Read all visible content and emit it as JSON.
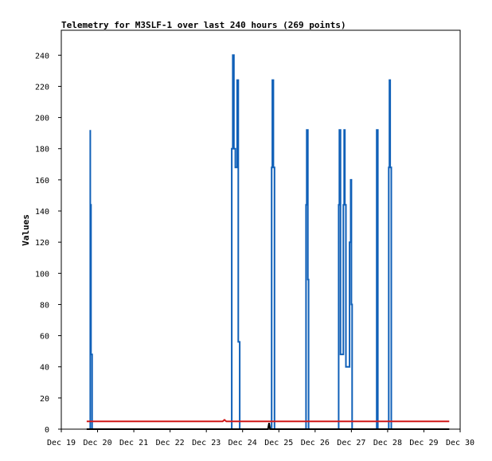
{
  "chart_data": {
    "type": "line",
    "title": "Telemetry for M3SLF-1 over last 240 hours (269 points)",
    "xlabel": "",
    "ylabel": "Values",
    "ylim": [
      0,
      256
    ],
    "xlim": [
      "Dec 19",
      "Dec 30"
    ],
    "x_tick_labels": [
      "Dec 19",
      "Dec 20",
      "Dec 21",
      "Dec 22",
      "Dec 23",
      "Dec 24",
      "Dec 25",
      "Dec 26",
      "Dec 27",
      "Dec 28",
      "Dec 29",
      "Dec 30"
    ],
    "y_ticks": [
      0,
      20,
      40,
      60,
      80,
      100,
      120,
      140,
      160,
      180,
      200,
      220,
      240
    ],
    "grid": false,
    "legend": "none",
    "series": [
      {
        "color": "#1060b8",
        "style": "spikes",
        "points": [
          [
            "Dec 19.80",
            192
          ],
          [
            "Dec 19.82",
            144
          ],
          [
            "Dec 19.85",
            48
          ],
          [
            "Dec 23.70",
            60
          ],
          [
            "Dec 23.73",
            180
          ],
          [
            "Dec 23.76",
            240
          ],
          [
            "Dec 23.80",
            180
          ],
          [
            "Dec 23.85",
            168
          ],
          [
            "Dec 23.88",
            224
          ],
          [
            "Dec 23.92",
            56
          ],
          [
            "Dec 24.80",
            56
          ],
          [
            "Dec 24.82",
            168
          ],
          [
            "Dec 24.85",
            224
          ],
          [
            "Dec 24.88",
            168
          ],
          [
            "Dec 25.75",
            48
          ],
          [
            "Dec 25.77",
            144
          ],
          [
            "Dec 25.80",
            192
          ],
          [
            "Dec 25.82",
            96
          ],
          [
            "Dec 26.65",
            48
          ],
          [
            "Dec 26.67",
            144
          ],
          [
            "Dec 26.70",
            192
          ],
          [
            "Dec 26.78",
            48
          ],
          [
            "Dec 26.80",
            144
          ],
          [
            "Dec 26.82",
            192
          ],
          [
            "Dec 26.85",
            144
          ],
          [
            "Dec 26.95",
            40
          ],
          [
            "Dec 26.98",
            120
          ],
          [
            "Dec 27.00",
            160
          ],
          [
            "Dec 27.02",
            80
          ],
          [
            "Dec 27.70",
            96
          ],
          [
            "Dec 27.73",
            192
          ],
          [
            "Dec 28.03",
            56
          ],
          [
            "Dec 28.05",
            168
          ],
          [
            "Dec 28.07",
            224
          ],
          [
            "Dec 28.10",
            168
          ]
        ]
      },
      {
        "color": "#d01818",
        "style": "line",
        "points": [
          [
            "Dec 19.70",
            5
          ],
          [
            "Dec 23.45",
            5
          ],
          [
            "Dec 23.50",
            6
          ],
          [
            "Dec 23.55",
            5
          ],
          [
            "Dec 29.70",
            5
          ]
        ]
      },
      {
        "color": "#000000",
        "style": "line",
        "points": [
          [
            "Dec 19.70",
            0
          ],
          [
            "Dec 24.70",
            0
          ],
          [
            "Dec 24.73",
            4
          ],
          [
            "Dec 24.76",
            0
          ],
          [
            "Dec 29.70",
            0
          ]
        ]
      }
    ]
  }
}
